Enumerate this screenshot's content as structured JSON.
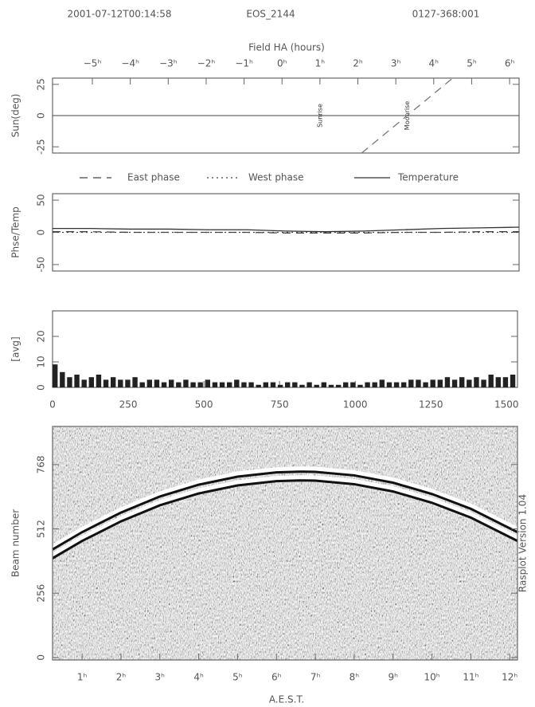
{
  "header": {
    "timestamp": "2001-07-12T00:14:58",
    "field": "EOS_2144",
    "scan": "0127-368:001"
  },
  "chart_data": [
    {
      "type": "line",
      "xlabel": "Field HA (hours)",
      "ylabel": "Sun(deg)",
      "xlim": [
        -6.05,
        6.25
      ],
      "xticks": [
        {
          "value": -5,
          "label": "−5ʰ"
        },
        {
          "value": -4,
          "label": "−4ʰ"
        },
        {
          "value": -3,
          "label": "−3ʰ"
        },
        {
          "value": -2,
          "label": "−2ʰ"
        },
        {
          "value": -1,
          "label": "−1ʰ"
        },
        {
          "value": 0,
          "label": "0ʰ"
        },
        {
          "value": 1,
          "label": "1ʰ"
        },
        {
          "value": 2,
          "label": "2ʰ"
        },
        {
          "value": 3,
          "label": "3ʰ"
        },
        {
          "value": 4,
          "label": "4ʰ"
        },
        {
          "value": 5,
          "label": "5ʰ"
        },
        {
          "value": 6,
          "label": "6ʰ"
        }
      ],
      "ylim": [
        -30,
        30
      ],
      "yticks": [
        -25,
        0,
        25
      ],
      "hline": 0,
      "series": [
        {
          "color": "#777",
          "style": "dashed",
          "x": [
            2.1,
            4.5
          ],
          "values": [
            -30,
            30
          ]
        }
      ],
      "annotations": [
        {
          "text": "Sunrise",
          "x": 1
        },
        {
          "text": "Moonrise",
          "x": 3.3
        }
      ]
    },
    {
      "type": "line",
      "ylabel": "Phse/Temp",
      "xlim": [
        0,
        1536
      ],
      "ylim": [
        -60,
        60
      ],
      "yticks": [
        -50,
        0,
        50
      ],
      "series": [
        {
          "name": "East phase",
          "color": "#444",
          "style": "dashed",
          "x": [
            0,
            128,
            256,
            384,
            512,
            640,
            768,
            896,
            1024,
            1152,
            1280,
            1408,
            1536
          ],
          "values": [
            1,
            1,
            0,
            0,
            0,
            0,
            -1,
            -1,
            -1,
            0,
            0,
            1,
            1
          ]
        },
        {
          "name": "West phase",
          "color": "#444",
          "style": "dotted",
          "x": [
            0,
            128,
            256,
            384,
            512,
            640,
            768,
            896,
            1024,
            1152,
            1280,
            1408,
            1536
          ],
          "values": [
            0,
            0,
            0,
            0,
            0,
            0,
            0,
            0,
            0,
            0,
            0,
            0,
            0
          ]
        },
        {
          "name": "Temperature",
          "color": "#333",
          "style": "solid",
          "x": [
            0,
            128,
            256,
            384,
            512,
            640,
            768,
            896,
            1024,
            1152,
            1280,
            1408,
            1536
          ],
          "values": [
            6,
            6,
            5,
            5,
            4,
            4,
            2,
            1,
            2,
            4,
            6,
            7,
            8
          ]
        }
      ]
    },
    {
      "type": "bar",
      "ylabel": "[avg]",
      "xlim": [
        0,
        1536
      ],
      "xticks": [
        0,
        250,
        500,
        750,
        1000,
        1250,
        1500
      ],
      "ylim": [
        0,
        30
      ],
      "yticks": [
        0,
        10,
        20
      ],
      "color": "#222",
      "x": [
        0,
        24,
        48,
        72,
        96,
        120,
        144,
        168,
        192,
        216,
        240,
        264,
        288,
        312,
        336,
        360,
        384,
        408,
        432,
        456,
        480,
        504,
        528,
        552,
        576,
        600,
        624,
        648,
        672,
        696,
        720,
        744,
        768,
        792,
        816,
        840,
        864,
        888,
        912,
        936,
        960,
        984,
        1008,
        1032,
        1056,
        1080,
        1104,
        1128,
        1152,
        1176,
        1200,
        1224,
        1248,
        1272,
        1296,
        1320,
        1344,
        1368,
        1392,
        1416,
        1440,
        1464,
        1488,
        1512
      ],
      "values": [
        9,
        6,
        4,
        5,
        3,
        4,
        5,
        3,
        4,
        3,
        3,
        4,
        2,
        3,
        3,
        2,
        3,
        2,
        3,
        2,
        2,
        3,
        2,
        2,
        2,
        3,
        2,
        2,
        1,
        2,
        2,
        1,
        2,
        2,
        1,
        2,
        1,
        2,
        1,
        1,
        2,
        2,
        1,
        2,
        2,
        3,
        2,
        2,
        2,
        3,
        3,
        2,
        3,
        3,
        4,
        3,
        4,
        3,
        4,
        3,
        5,
        4,
        4,
        5
      ]
    },
    {
      "type": "raster",
      "xlabel": "A.E.S.T.",
      "ylabel": "Beam number",
      "side_label": "Rasplot Version 1.04",
      "xlim": [
        0.24,
        12.2
      ],
      "xticks": [
        {
          "value": 1,
          "label": "1ʰ"
        },
        {
          "value": 2,
          "label": "2ʰ"
        },
        {
          "value": 3,
          "label": "3ʰ"
        },
        {
          "value": 4,
          "label": "4ʰ"
        },
        {
          "value": 5,
          "label": "5ʰ"
        },
        {
          "value": 6,
          "label": "6ʰ"
        },
        {
          "value": 7,
          "label": "7ʰ"
        },
        {
          "value": 8,
          "label": "8ʰ"
        },
        {
          "value": 9,
          "label": "9ʰ"
        },
        {
          "value": 10,
          "label": "10ʰ"
        },
        {
          "value": 11,
          "label": "11ʰ"
        },
        {
          "value": 12,
          "label": "12ʰ"
        }
      ],
      "ylim": [
        -10,
        920
      ],
      "yticks": [
        0,
        256,
        512,
        768
      ],
      "series": [
        {
          "color": "#111",
          "x": [
            0.24,
            1,
            2,
            3,
            4,
            5,
            6,
            6.6,
            7,
            8,
            9,
            10,
            11,
            12.2
          ],
          "values": [
            430,
            499,
            577,
            641,
            688,
            720,
            737,
            740,
            739,
            725,
            696,
            651,
            592,
            499
          ]
        },
        {
          "color": "#111",
          "x": [
            0.24,
            1,
            2,
            3,
            4,
            5,
            6,
            6.6,
            7,
            8,
            9,
            10,
            11,
            12.2
          ],
          "values": [
            395,
            464,
            542,
            606,
            653,
            685,
            702,
            705,
            704,
            690,
            661,
            616,
            557,
            464
          ]
        }
      ]
    }
  ]
}
